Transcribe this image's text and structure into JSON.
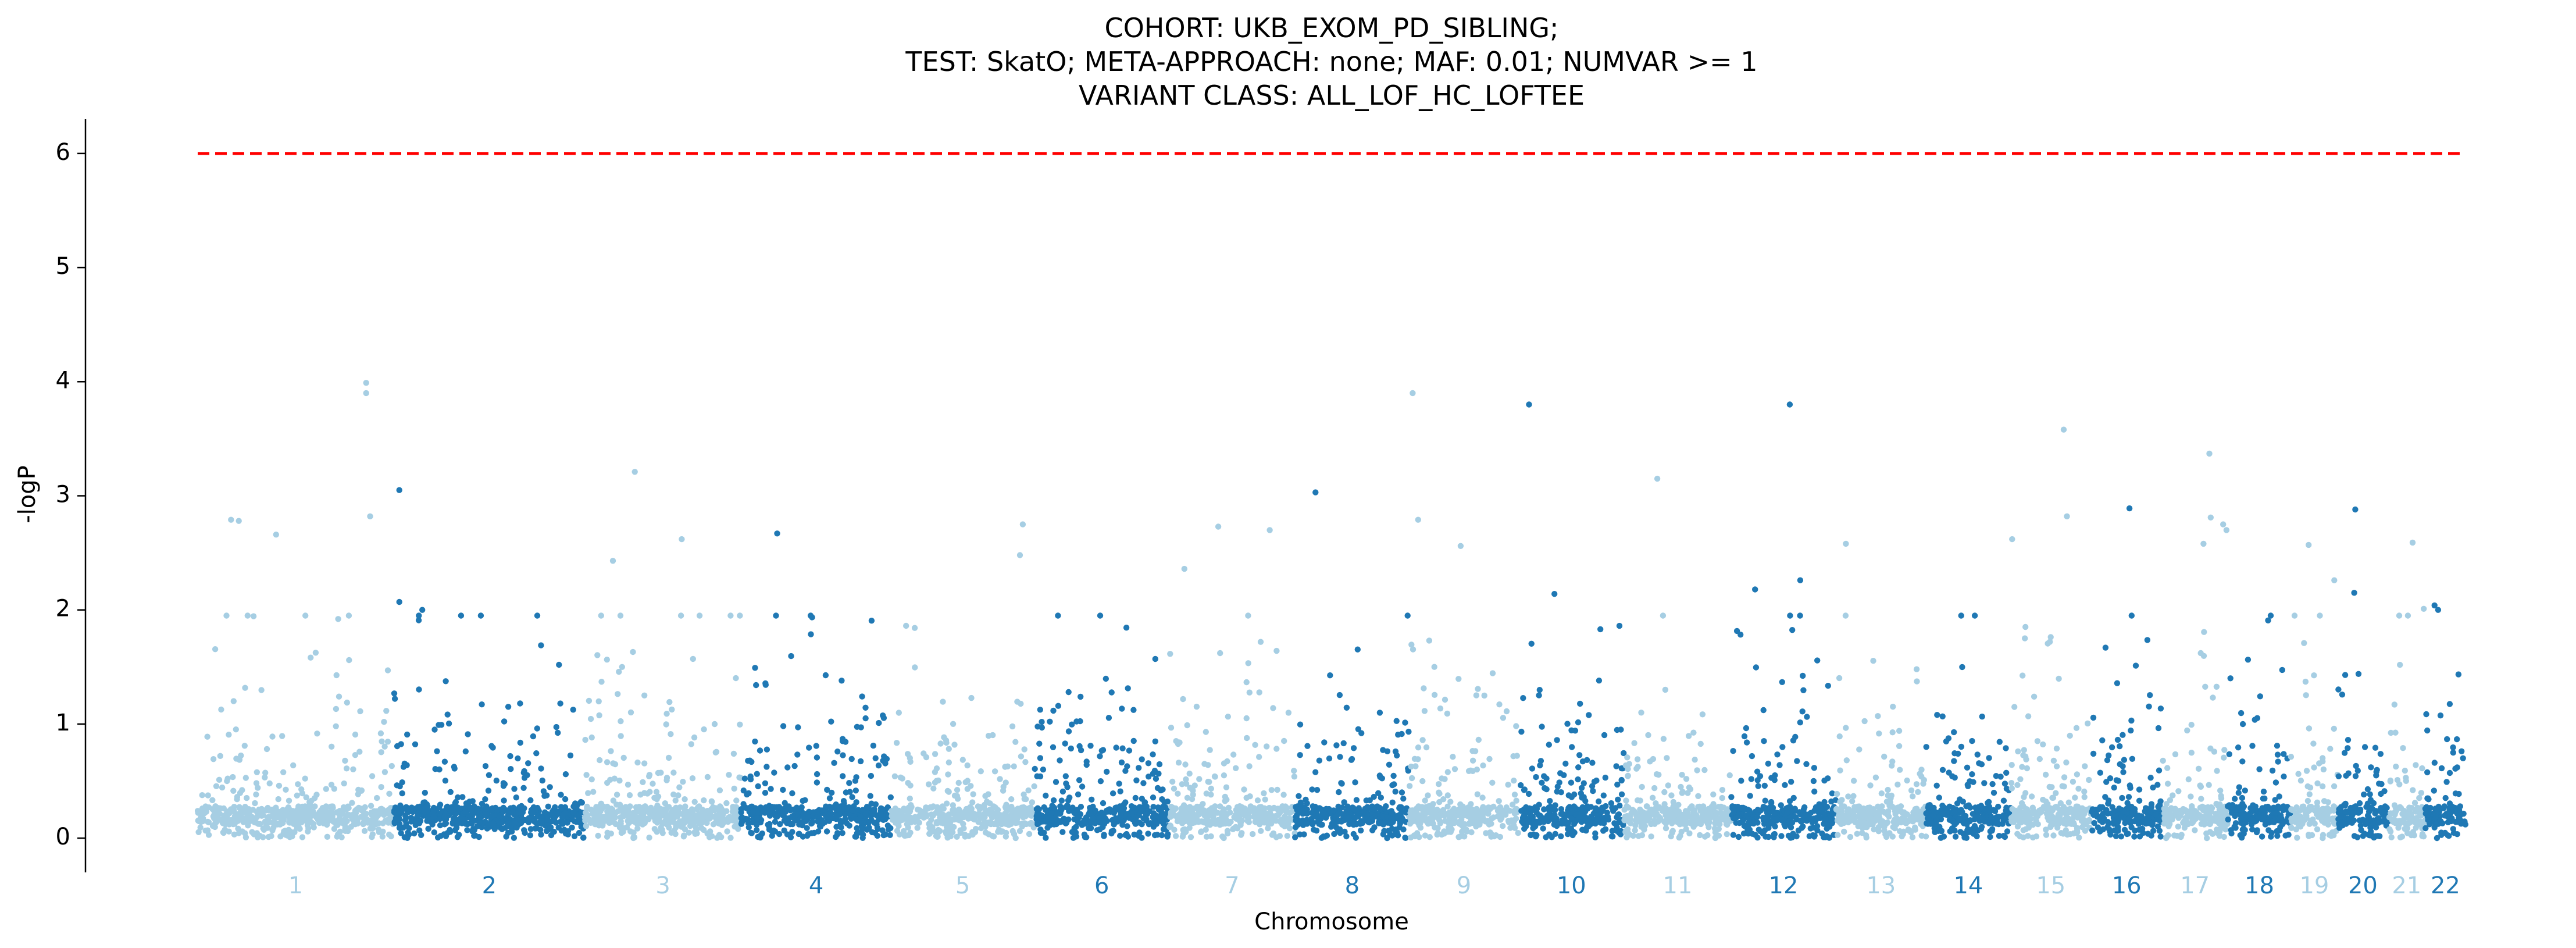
{
  "chart_data": {
    "type": "scatter",
    "subtype": "manhattan",
    "title": [
      "COHORT: UKB_EXOM_PD_SIBLING;",
      "TEST: SkatO; META-APPROACH: none; MAF: 0.01; NUMVAR >= 1",
      "VARIANT CLASS: ALL_LOF_HC_LOFTEE"
    ],
    "xlabel": "Chromosome",
    "ylabel": "-logP",
    "ylim": [
      -0.3,
      6.3
    ],
    "yticks": [
      0,
      1,
      2,
      3,
      4,
      5,
      6
    ],
    "threshold": {
      "value": 6,
      "color": "#ff0000",
      "style": "dashed"
    },
    "colors": {
      "light": "#a6cee3",
      "dark": "#1f78b4",
      "threshold": "#ff0000"
    },
    "grid": false,
    "legend": "none",
    "chromosomes": [
      {
        "label": "1",
        "start": 0,
        "end": 248,
        "color": "light"
      },
      {
        "label": "2",
        "start": 248,
        "end": 490,
        "color": "dark"
      },
      {
        "label": "3",
        "start": 490,
        "end": 688,
        "color": "light"
      },
      {
        "label": "4",
        "start": 688,
        "end": 878,
        "color": "dark"
      },
      {
        "label": "5",
        "start": 878,
        "end": 1059,
        "color": "light"
      },
      {
        "label": "6",
        "start": 1059,
        "end": 1230,
        "color": "dark"
      },
      {
        "label": "7",
        "start": 1230,
        "end": 1389,
        "color": "light"
      },
      {
        "label": "8",
        "start": 1389,
        "end": 1534,
        "color": "dark"
      },
      {
        "label": "9",
        "start": 1534,
        "end": 1672,
        "color": "light"
      },
      {
        "label": "10",
        "start": 1672,
        "end": 1806,
        "color": "dark"
      },
      {
        "label": "11",
        "start": 1806,
        "end": 1941,
        "color": "light"
      },
      {
        "label": "12",
        "start": 1941,
        "end": 2074,
        "color": "dark"
      },
      {
        "label": "13",
        "start": 2074,
        "end": 2188,
        "color": "light"
      },
      {
        "label": "14",
        "start": 2188,
        "end": 2295,
        "color": "dark"
      },
      {
        "label": "15",
        "start": 2295,
        "end": 2397,
        "color": "light"
      },
      {
        "label": "16",
        "start": 2397,
        "end": 2487,
        "color": "dark"
      },
      {
        "label": "17",
        "start": 2487,
        "end": 2570,
        "color": "light"
      },
      {
        "label": "18",
        "start": 2570,
        "end": 2650,
        "color": "dark"
      },
      {
        "label": "19",
        "start": 2650,
        "end": 2709,
        "color": "light"
      },
      {
        "label": "20",
        "start": 2709,
        "end": 2773,
        "color": "dark"
      },
      {
        "label": "21",
        "start": 2773,
        "end": 2820,
        "color": "light"
      },
      {
        "label": "22",
        "start": 2820,
        "end": 2871,
        "color": "dark"
      }
    ],
    "highlights": [
      {
        "chr": "1",
        "pos": 0.86,
        "y": 3.99
      },
      {
        "chr": "1",
        "pos": 0.86,
        "y": 3.9
      },
      {
        "chr": "1",
        "pos": 0.17,
        "y": 2.79
      },
      {
        "chr": "1",
        "pos": 0.21,
        "y": 2.78
      },
      {
        "chr": "1",
        "pos": 0.4,
        "y": 2.66
      },
      {
        "chr": "1",
        "pos": 0.88,
        "y": 2.82
      },
      {
        "chr": "2",
        "pos": 0.03,
        "y": 3.05
      },
      {
        "chr": "2",
        "pos": 0.03,
        "y": 2.07
      },
      {
        "chr": "2",
        "pos": 0.15,
        "y": 2.0
      },
      {
        "chr": "3",
        "pos": 0.32,
        "y": 3.21
      },
      {
        "chr": "3",
        "pos": 0.62,
        "y": 2.62
      },
      {
        "chr": "3",
        "pos": 0.18,
        "y": 2.43
      },
      {
        "chr": "4",
        "pos": 0.24,
        "y": 2.67
      },
      {
        "chr": "5",
        "pos": 0.92,
        "y": 2.75
      },
      {
        "chr": "5",
        "pos": 0.9,
        "y": 2.48
      },
      {
        "chr": "7",
        "pos": 0.39,
        "y": 2.73
      },
      {
        "chr": "7",
        "pos": 0.8,
        "y": 2.7
      },
      {
        "chr": "7",
        "pos": 0.12,
        "y": 2.36
      },
      {
        "chr": "8",
        "pos": 0.18,
        "y": 3.03
      },
      {
        "chr": "9",
        "pos": 0.03,
        "y": 3.9
      },
      {
        "chr": "9",
        "pos": 0.08,
        "y": 2.79
      },
      {
        "chr": "9",
        "pos": 0.47,
        "y": 2.56
      },
      {
        "chr": "10",
        "pos": 0.1,
        "y": 3.8
      },
      {
        "chr": "10",
        "pos": 0.34,
        "y": 2.14
      },
      {
        "chr": "11",
        "pos": 0.31,
        "y": 3.15
      },
      {
        "chr": "12",
        "pos": 0.56,
        "y": 3.8
      },
      {
        "chr": "12",
        "pos": 0.66,
        "y": 2.26
      },
      {
        "chr": "12",
        "pos": 0.23,
        "y": 2.18
      },
      {
        "chr": "13",
        "pos": 0.11,
        "y": 2.58
      },
      {
        "chr": "15",
        "pos": 0.66,
        "y": 3.58
      },
      {
        "chr": "15",
        "pos": 0.7,
        "y": 2.82
      },
      {
        "chr": "15",
        "pos": 0.02,
        "y": 2.62
      },
      {
        "chr": "16",
        "pos": 0.54,
        "y": 2.89
      },
      {
        "chr": "17",
        "pos": 0.72,
        "y": 3.37
      },
      {
        "chr": "17",
        "pos": 0.74,
        "y": 2.81
      },
      {
        "chr": "17",
        "pos": 0.93,
        "y": 2.75
      },
      {
        "chr": "17",
        "pos": 0.98,
        "y": 2.7
      },
      {
        "chr": "17",
        "pos": 0.63,
        "y": 2.58
      },
      {
        "chr": "19",
        "pos": 0.38,
        "y": 2.57
      },
      {
        "chr": "19",
        "pos": 0.93,
        "y": 2.26
      },
      {
        "chr": "20",
        "pos": 0.35,
        "y": 2.88
      },
      {
        "chr": "20",
        "pos": 0.33,
        "y": 2.15
      },
      {
        "chr": "21",
        "pos": 0.66,
        "y": 2.59
      },
      {
        "chr": "21",
        "pos": 0.96,
        "y": 2.01
      },
      {
        "chr": "22",
        "pos": 0.32,
        "y": 2.0
      },
      {
        "chr": "22",
        "pos": 0.23,
        "y": 2.04
      }
    ]
  }
}
